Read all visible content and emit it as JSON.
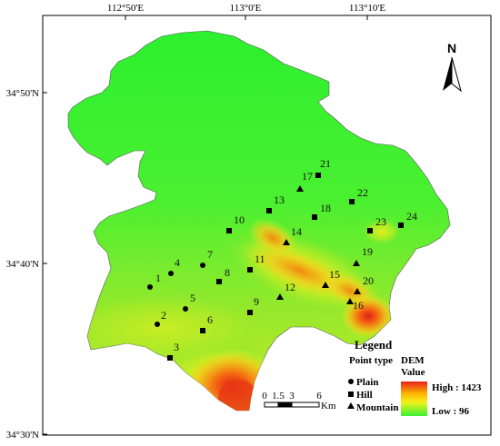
{
  "axes": {
    "top_ticks": [
      "112°50'E",
      "113°0'E",
      "113°10'E"
    ],
    "left_ticks": [
      "34°50'N",
      "34°40'N",
      "34°30'N"
    ]
  },
  "north_arrow": {
    "label": "N"
  },
  "scale_bar": {
    "ticks": [
      "0",
      "1.5",
      "3",
      "6"
    ],
    "unit": "Km"
  },
  "legend": {
    "title": "Legend",
    "point_type_title": "Point type",
    "dem_title_line1": "DEM",
    "dem_title_line2": "Value",
    "point_types": [
      {
        "symbol": "circle",
        "label": "Plain"
      },
      {
        "symbol": "square",
        "label": "Hill"
      },
      {
        "symbol": "triangle",
        "label": "Mountain"
      }
    ],
    "dem_high": "High : 1423",
    "dem_low": "Low : 96",
    "gradient_colors": [
      "#e8201a",
      "#ffb400",
      "#f2f21a",
      "#39f234"
    ]
  },
  "points": [
    {
      "id": "1",
      "type": "circle"
    },
    {
      "id": "2",
      "type": "circle"
    },
    {
      "id": "3",
      "type": "square"
    },
    {
      "id": "4",
      "type": "circle"
    },
    {
      "id": "5",
      "type": "circle"
    },
    {
      "id": "6",
      "type": "square"
    },
    {
      "id": "7",
      "type": "circle"
    },
    {
      "id": "8",
      "type": "square"
    },
    {
      "id": "9",
      "type": "square"
    },
    {
      "id": "10",
      "type": "square"
    },
    {
      "id": "11",
      "type": "square"
    },
    {
      "id": "12",
      "type": "triangle"
    },
    {
      "id": "13",
      "type": "square"
    },
    {
      "id": "14",
      "type": "triangle"
    },
    {
      "id": "15",
      "type": "triangle"
    },
    {
      "id": "16",
      "type": "triangle"
    },
    {
      "id": "17",
      "type": "triangle"
    },
    {
      "id": "18",
      "type": "square"
    },
    {
      "id": "19",
      "type": "triangle"
    },
    {
      "id": "20",
      "type": "triangle"
    },
    {
      "id": "21",
      "type": "square"
    },
    {
      "id": "22",
      "type": "square"
    },
    {
      "id": "23",
      "type": "square"
    },
    {
      "id": "24",
      "type": "square"
    }
  ]
}
